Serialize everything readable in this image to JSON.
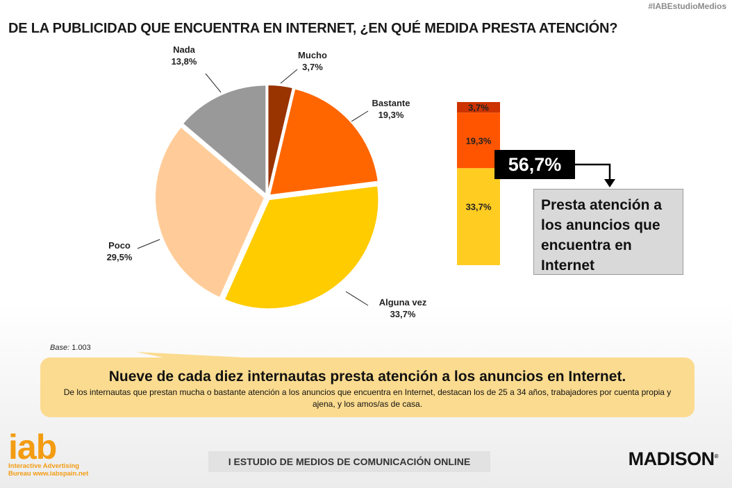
{
  "hashtag": "#IABEstudioMedios",
  "title": "DE LA PUBLICIDAD QUE ENCUENTRA EN INTERNET, ¿EN QUÉ MEDIDA PRESTA ATENCIÓN?",
  "chart_data": [
    {
      "type": "pie",
      "slices": [
        {
          "label": "Mucho",
          "value": 3.7,
          "display": "3,7%",
          "color": "#993300"
        },
        {
          "label": "Bastante",
          "value": 19.3,
          "display": "19,3%",
          "color": "#ff6600"
        },
        {
          "label": "Alguna vez",
          "value": 33.7,
          "display": "33,7%",
          "color": "#ffcc00"
        },
        {
          "label": "Poco",
          "value": 29.5,
          "display": "29,5%",
          "color": "#ffcc99"
        },
        {
          "label": "Nada",
          "value": 13.8,
          "display": "13,8%",
          "color": "#999999"
        }
      ]
    },
    {
      "type": "bar",
      "stacked": true,
      "segments": [
        {
          "value": 3.7,
          "display": "3,7%",
          "color": "#cc3300"
        },
        {
          "value": 19.3,
          "display": "19,3%",
          "color": "#ff5500"
        },
        {
          "value": 33.7,
          "display": "33,7%",
          "color": "#ffcc22"
        }
      ],
      "total_display": "56,7%",
      "total_caption": "Presta atención a los anuncios que encuentra en Internet"
    }
  ],
  "base": {
    "label": "Base:",
    "value": "1.003"
  },
  "callout": {
    "title": "Nueve de cada diez internautas presta atención a los anuncios en Internet.",
    "text": "De los internautas que prestan mucha o bastante atención a los anuncios que encuentra en Internet, destacan los de 25 a 34 años, trabajadores por cuenta propia y ajena, y los amos/as de casa."
  },
  "footer": {
    "study": "I ESTUDIO DE MEDIOS DE COMUNICACIÓN ONLINE",
    "iab_word": "iab",
    "iab_line1": "Interactive Advertising",
    "iab_line2": "Bureau www.iabspain.net",
    "madison": "MADISON",
    "madison_mark": "®"
  }
}
